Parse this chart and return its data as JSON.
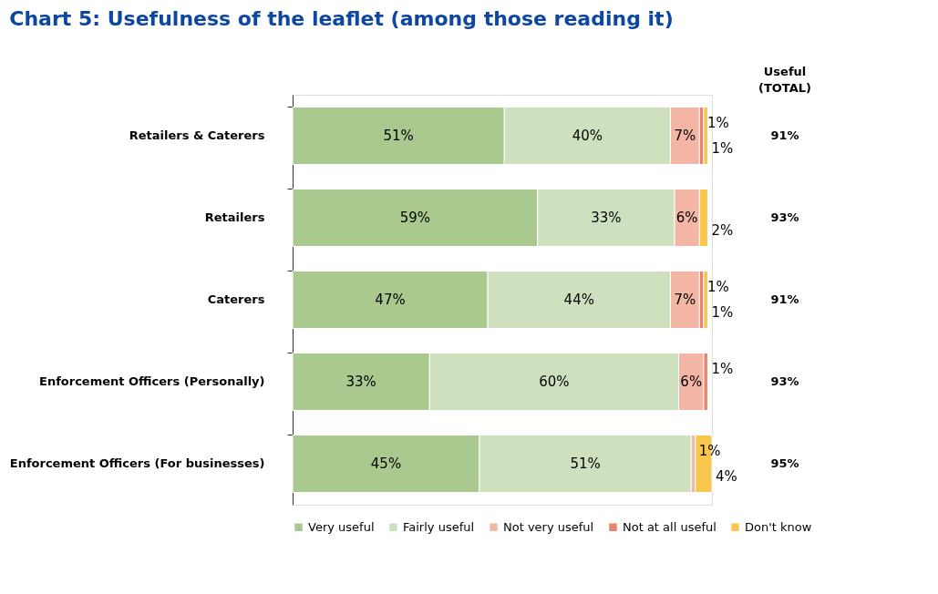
{
  "chart_data": {
    "type": "bar",
    "orientation": "horizontal",
    "stacked": true,
    "title": "Chart 5: Usefulness of the leaflet (among those reading it)",
    "categories": [
      "Retailers & Caterers",
      "Retailers",
      "Caterers",
      "Enforcement Officers (Personally)",
      "Enforcement Officers (For businesses)"
    ],
    "series": [
      {
        "name": "Very useful",
        "color": "#a9c98f",
        "values": [
          51,
          59,
          47,
          33,
          45
        ],
        "value_labels": [
          "51%",
          "59%",
          "47%",
          "33%",
          "45%"
        ]
      },
      {
        "name": "Fairly useful",
        "color": "#cfe0bf",
        "values": [
          40,
          33,
          44,
          60,
          51
        ],
        "value_labels": [
          "40%",
          "33%",
          "44%",
          "60%",
          "51%"
        ]
      },
      {
        "name": "Not very useful",
        "color": "#f4b6a4",
        "values": [
          7,
          6,
          7,
          6,
          1
        ],
        "value_labels": [
          "7%",
          "6%",
          "7%",
          "6%",
          "1%"
        ]
      },
      {
        "name": "Not at all useful",
        "color": "#e8846e",
        "values": [
          1,
          null,
          1,
          1,
          null
        ],
        "value_labels": [
          "1%",
          null,
          "1%",
          "1%",
          null
        ]
      },
      {
        "name": "Don't know",
        "color": "#f9c74f",
        "values": [
          1,
          2,
          1,
          null,
          4
        ],
        "value_labels": [
          "1%",
          "2%",
          "1%",
          null,
          "4%"
        ]
      }
    ],
    "annotations": [
      "Useful (TOTAL)",
      "91%",
      "93%",
      "91%",
      "93%",
      "95%"
    ],
    "legend": "bottom",
    "grid": false
  }
}
